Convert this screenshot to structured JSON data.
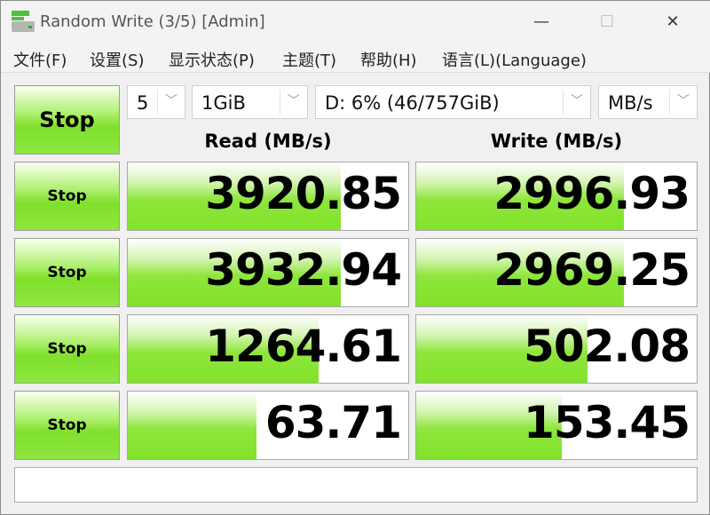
{
  "window": {
    "title": "Random Write (3/5) [Admin]",
    "minimize": "—",
    "maximize": "☐",
    "close": "✕"
  },
  "menu": [
    "文件(F)",
    "设置(S)",
    "显示状态(P)",
    "主题(T)",
    "帮助(H)",
    "语言(L)(Language)"
  ],
  "controls": {
    "all_button": "Stop",
    "count": "5",
    "size": "1GiB",
    "drive": "D: 6% (46/757GiB)",
    "unit": "MB/s"
  },
  "headers": {
    "read": "Read (MB/s)",
    "write": "Write (MB/s)"
  },
  "rows": [
    {
      "button": "Stop",
      "read": "3920.85",
      "write": "2996.93",
      "read_fill": 0.76,
      "write_fill": 0.74
    },
    {
      "button": "Stop",
      "read": "3932.94",
      "write": "2969.25",
      "read_fill": 0.76,
      "write_fill": 0.74
    },
    {
      "button": "Stop",
      "read": "1264.61",
      "write": "502.08",
      "read_fill": 0.68,
      "write_fill": 0.61
    },
    {
      "button": "Stop",
      "read": "63.71",
      "write": "153.45",
      "read_fill": 0.46,
      "write_fill": 0.52
    }
  ],
  "status": "",
  "colors": {
    "accent": "#82e22a"
  }
}
